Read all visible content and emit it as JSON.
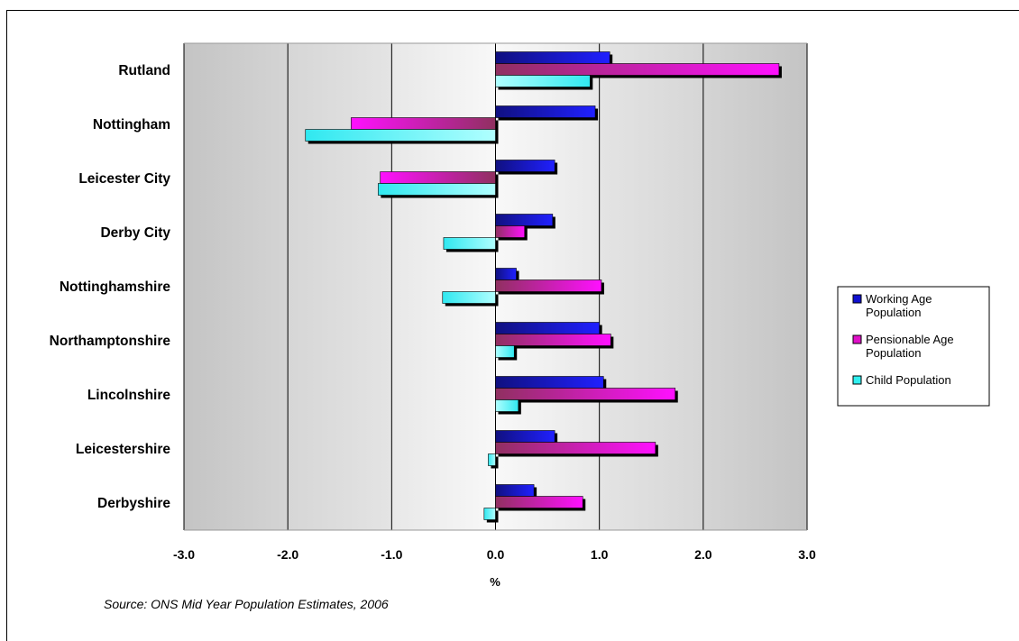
{
  "chart_data": {
    "type": "bar",
    "orientation": "horizontal",
    "categories": [
      "Rutland",
      "Nottingham",
      "Leicester City",
      "Derby City",
      "Nottinghamshire",
      "Northamptonshire",
      "Lincolnshire",
      "Leicestershire",
      "Derbyshire"
    ],
    "series": [
      {
        "name": "Working Age Population",
        "color": "#1010d0",
        "values": [
          1.1,
          0.96,
          0.57,
          0.55,
          0.2,
          1.0,
          1.04,
          0.57,
          0.37
        ]
      },
      {
        "name": "Pensionable Age Population",
        "color": "#e010c8",
        "values": [
          2.73,
          -1.39,
          -1.11,
          0.28,
          1.02,
          1.11,
          1.73,
          1.54,
          0.84
        ]
      },
      {
        "name": "Child Population",
        "color": "#30f0f0",
        "values": [
          0.91,
          -1.83,
          -1.13,
          -0.5,
          -0.51,
          0.18,
          0.22,
          -0.07,
          -0.11
        ]
      }
    ],
    "xlim": [
      -3.0,
      3.0
    ],
    "xticks": [
      "-3.0",
      "-2.0",
      "-1.0",
      "0.0",
      "1.0",
      "2.0",
      "3.0"
    ],
    "xlabel": "%",
    "ylabel": "",
    "title": "",
    "grid": true,
    "legend_position": "right",
    "source_note": "Source: ONS Mid Year Population Estimates, 2006"
  }
}
